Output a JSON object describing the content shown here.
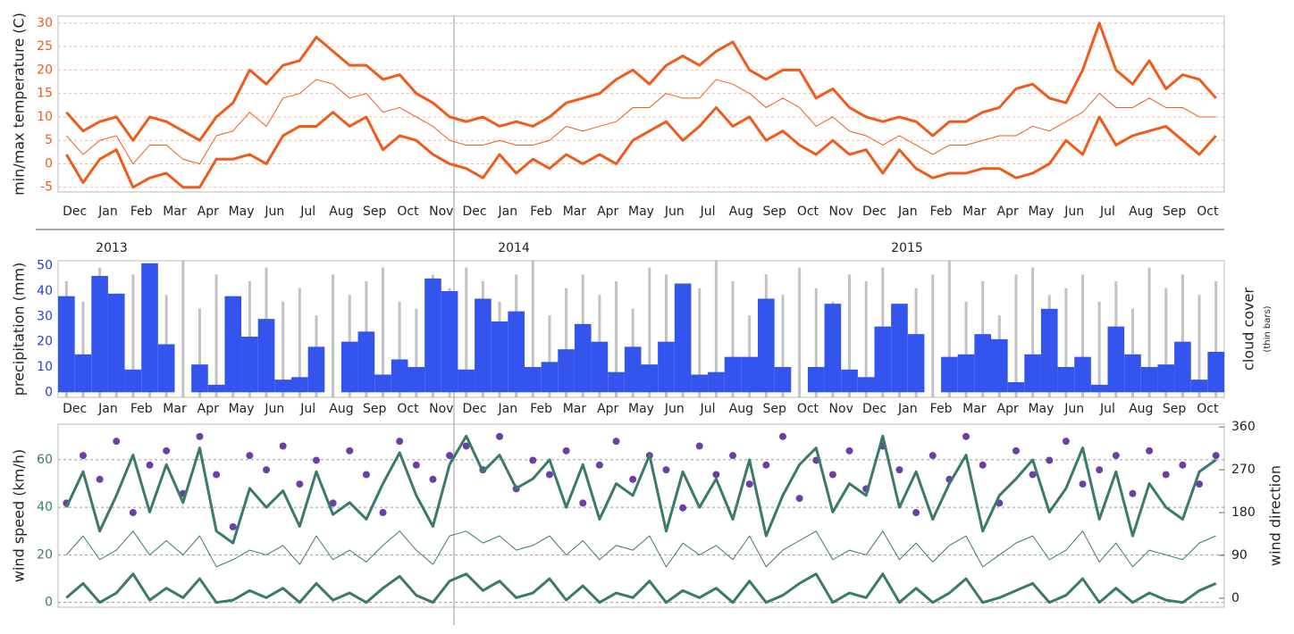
{
  "chart_data": [
    {
      "type": "line",
      "y_label": "min/max temperature (C)",
      "tick_color": "#f05a1a",
      "grid": true,
      "grid_color": "#f5b8a0",
      "categories": [
        "Dec",
        null,
        "Jan",
        null,
        "Feb",
        null,
        "Mar",
        null,
        "Apr",
        null,
        "May",
        null,
        "Jun",
        null,
        "Jul",
        null,
        "Aug",
        null,
        "Sep",
        null,
        "Oct",
        null,
        "Nov",
        null,
        "Dec",
        null,
        "Jan",
        null,
        "Feb",
        null,
        "Mar",
        null,
        "Apr",
        null,
        "May",
        null,
        "Jun",
        null,
        "Jul",
        null,
        "Aug",
        null,
        "Sep",
        null,
        "Oct",
        null,
        "Nov",
        null,
        "Dec",
        null,
        "Jan",
        null,
        "Feb",
        null,
        "Mar",
        null,
        "Apr",
        null,
        "May",
        null,
        "Jun",
        null,
        "Jul",
        null,
        "Aug",
        null,
        "Sep",
        null,
        "Oct",
        null
      ],
      "ylim": [
        -6,
        31.5
      ],
      "yticks": [
        -5,
        0,
        5,
        10,
        15,
        20,
        25,
        30
      ],
      "series": [
        {
          "color": "#f05a1a",
          "line_width": 3,
          "values": [
            11,
            7,
            9,
            10,
            5,
            10,
            9,
            7,
            5,
            10,
            13,
            20,
            17,
            21,
            22,
            27,
            24,
            21,
            21,
            18,
            19,
            15,
            13,
            10,
            9,
            10,
            8,
            9,
            8,
            10,
            13,
            14,
            15,
            18,
            20,
            17,
            21,
            23,
            21,
            24,
            26,
            20,
            18,
            20,
            20,
            14,
            16,
            12,
            10,
            9,
            10,
            9,
            6,
            9,
            9,
            11,
            12,
            16,
            17,
            14,
            13,
            20,
            30,
            20,
            17,
            22,
            16,
            19,
            18,
            14
          ]
        },
        {
          "color": "#f05a1a",
          "line_width": 1,
          "values": [
            6,
            2,
            5,
            6,
            0,
            4,
            4,
            1,
            0,
            6,
            7,
            11,
            8,
            14,
            15,
            18,
            17,
            14,
            15,
            11,
            12,
            10,
            8,
            5,
            4,
            4,
            5,
            4,
            4,
            5,
            8,
            7,
            8,
            9,
            12,
            12,
            15,
            14,
            14,
            18,
            17,
            15,
            12,
            14,
            12,
            8,
            10,
            7,
            6,
            4,
            6,
            4,
            2,
            4,
            4,
            5,
            6,
            6,
            8,
            7,
            9,
            11,
            15,
            12,
            12,
            14,
            12,
            12,
            10,
            10
          ]
        },
        {
          "color": "#f05a1a",
          "line_width": 3,
          "values": [
            2,
            -4,
            1,
            3,
            -5,
            -3,
            -2,
            -5,
            -5,
            1,
            1,
            2,
            0,
            6,
            8,
            8,
            11,
            8,
            10,
            3,
            6,
            5,
            2,
            0,
            -1,
            -3,
            2,
            -2,
            1,
            -1,
            2,
            0,
            2,
            0,
            5,
            7,
            9,
            5,
            8,
            12,
            8,
            10,
            5,
            7,
            4,
            2,
            5,
            2,
            3,
            -2,
            3,
            -1,
            -3,
            -2,
            -2,
            -1,
            -1,
            -3,
            -2,
            0,
            5,
            2,
            10,
            4,
            6,
            7,
            8,
            5,
            2,
            6
          ]
        }
      ]
    },
    {
      "type": "bar",
      "y_label": "precipitation (mm)",
      "y2_label": "cloud cover",
      "y2_note": "(thin bars)",
      "years": [
        "2013",
        "2014",
        "2015"
      ],
      "tick_color": "#2244cc",
      "categories": [
        "Dec",
        null,
        "Jan",
        null,
        "Feb",
        null,
        "Mar",
        null,
        "Apr",
        null,
        "May",
        null,
        "Jun",
        null,
        "Jul",
        null,
        "Aug",
        null,
        "Sep",
        null,
        "Oct",
        null,
        "Nov",
        null,
        "Dec",
        null,
        "Jan",
        null,
        "Feb",
        null,
        "Mar",
        null,
        "Apr",
        null,
        "May",
        null,
        "Jun",
        null,
        "Jul",
        null,
        "Aug",
        null,
        "Sep",
        null,
        "Oct",
        null,
        "Nov",
        null,
        "Dec",
        null,
        "Jan",
        null,
        "Feb",
        null,
        "Mar",
        null,
        "Apr",
        null,
        "May",
        null,
        "Jun",
        null,
        "Jul",
        null,
        "Aug",
        null,
        "Sep",
        null,
        "Oct",
        null
      ],
      "ylim": [
        -2,
        52
      ],
      "yticks": [
        0,
        10,
        20,
        30,
        40,
        50
      ],
      "y2lim": [
        0,
        100
      ],
      "series": [
        {
          "color": "#a8a8a8",
          "axis": "y2",
          "values": [
            85,
            70,
            95,
            60,
            90,
            80,
            75,
            100,
            65,
            90,
            55,
            85,
            95,
            70,
            80,
            60,
            90,
            75,
            85,
            95,
            70,
            65,
            90,
            80,
            95,
            85,
            70,
            90,
            100,
            60,
            80,
            90,
            75,
            85,
            65,
            95,
            90,
            70,
            80,
            100,
            85,
            60,
            90,
            75,
            95,
            80,
            70,
            90,
            85,
            95,
            65,
            80,
            90,
            100,
            70,
            85,
            60,
            90,
            95,
            75,
            80,
            90,
            70,
            85,
            65,
            95,
            80,
            90,
            75,
            85
          ]
        },
        {
          "color": "#3355ee",
          "values": [
            38,
            15,
            46,
            39,
            9,
            51,
            19,
            0,
            11,
            3,
            38,
            22,
            29,
            5,
            6,
            18,
            0,
            20,
            24,
            7,
            13,
            10,
            45,
            40,
            9,
            37,
            28,
            32,
            10,
            12,
            17,
            27,
            20,
            8,
            18,
            11,
            20,
            43,
            7,
            8,
            14,
            14,
            37,
            10,
            0,
            10,
            35,
            9,
            6,
            26,
            35,
            23,
            0,
            14,
            15,
            23,
            21,
            4,
            15,
            33,
            10,
            14,
            3,
            26,
            15,
            10,
            11,
            20,
            5,
            16
          ]
        }
      ]
    },
    {
      "type": "line",
      "y_label": "wind speed (km/h)",
      "y2_label": "wind direction",
      "tick_color": "#3a7a6a",
      "grid": true,
      "grid_color": "#999999",
      "categories": [
        "Dec",
        null,
        "Jan",
        null,
        "Feb",
        null,
        "Mar",
        null,
        "Apr",
        null,
        "May",
        null,
        "Jun",
        null,
        "Jul",
        null,
        "Aug",
        null,
        "Sep",
        null,
        "Oct",
        null,
        "Nov",
        null,
        "Dec",
        null,
        "Jan",
        null,
        "Feb",
        null,
        "Mar",
        null,
        "Apr",
        null,
        "May",
        null,
        "Jun",
        null,
        "Jul",
        null,
        "Aug",
        null,
        "Sep",
        null,
        "Oct",
        null,
        "Nov",
        null,
        "Dec",
        null,
        "Jan",
        null,
        "Feb",
        null,
        "Mar",
        null,
        "Apr",
        null,
        "May",
        null,
        "Jun",
        null,
        "Jul",
        null,
        "Aug",
        null,
        "Sep",
        null,
        "Oct",
        null
      ],
      "ylim": [
        -2,
        75
      ],
      "yticks": [
        0,
        20,
        40,
        60
      ],
      "y2lim": [
        -19,
        366
      ],
      "y2ticks": [
        0,
        90,
        180,
        270,
        360
      ],
      "series": [
        {
          "type": "scatter",
          "axis": "y2",
          "color": "#6a40a8",
          "values": [
            200,
            300,
            250,
            330,
            180,
            280,
            310,
            220,
            340,
            260,
            150,
            300,
            270,
            320,
            240,
            290,
            200,
            310,
            260,
            180,
            330,
            280,
            250,
            300,
            320,
            270,
            340,
            230,
            290,
            260,
            310,
            200,
            280,
            330,
            250,
            300,
            270,
            190,
            320,
            260,
            300,
            240,
            280,
            340,
            210,
            290,
            260,
            310,
            230,
            320,
            270,
            180,
            300,
            250,
            340,
            280,
            200,
            310,
            260,
            290,
            330,
            240,
            270,
            300,
            220,
            310,
            260,
            280,
            240,
            300
          ]
        },
        {
          "color": "#3a7a6a",
          "line_width": 3,
          "values": [
            40,
            55,
            30,
            45,
            62,
            38,
            58,
            42,
            65,
            30,
            25,
            48,
            40,
            47,
            32,
            55,
            37,
            42,
            35,
            50,
            63,
            45,
            32,
            58,
            70,
            55,
            62,
            48,
            52,
            60,
            40,
            58,
            35,
            50,
            45,
            62,
            30,
            55,
            40,
            52,
            35,
            60,
            28,
            45,
            58,
            65,
            38,
            50,
            45,
            70,
            40,
            55,
            35,
            50,
            62,
            30,
            45,
            52,
            60,
            38,
            48,
            65,
            35,
            55,
            28,
            50,
            40,
            35,
            55,
            60
          ]
        },
        {
          "color": "#3a7a6a",
          "line_width": 1,
          "values": [
            20,
            28,
            18,
            22,
            30,
            20,
            26,
            20,
            28,
            15,
            18,
            22,
            20,
            24,
            16,
            28,
            18,
            22,
            17,
            24,
            30,
            22,
            16,
            28,
            30,
            25,
            28,
            22,
            24,
            28,
            20,
            26,
            18,
            24,
            22,
            28,
            15,
            25,
            20,
            24,
            18,
            28,
            15,
            22,
            26,
            30,
            18,
            22,
            20,
            30,
            18,
            25,
            17,
            24,
            28,
            15,
            20,
            25,
            28,
            18,
            22,
            30,
            17,
            25,
            15,
            22,
            20,
            18,
            25,
            28
          ]
        },
        {
          "color": "#3a7a6a",
          "line_width": 3,
          "values": [
            2,
            8,
            0,
            4,
            12,
            1,
            6,
            2,
            10,
            0,
            1,
            5,
            2,
            6,
            0,
            8,
            1,
            4,
            0,
            6,
            11,
            3,
            0,
            9,
            12,
            5,
            9,
            2,
            4,
            10,
            1,
            7,
            0,
            4,
            2,
            9,
            0,
            5,
            2,
            6,
            0,
            9,
            0,
            3,
            8,
            12,
            0,
            4,
            2,
            12,
            0,
            6,
            0,
            4,
            10,
            0,
            2,
            5,
            8,
            0,
            3,
            10,
            0,
            6,
            0,
            4,
            1,
            0,
            5,
            8
          ]
        }
      ]
    }
  ]
}
